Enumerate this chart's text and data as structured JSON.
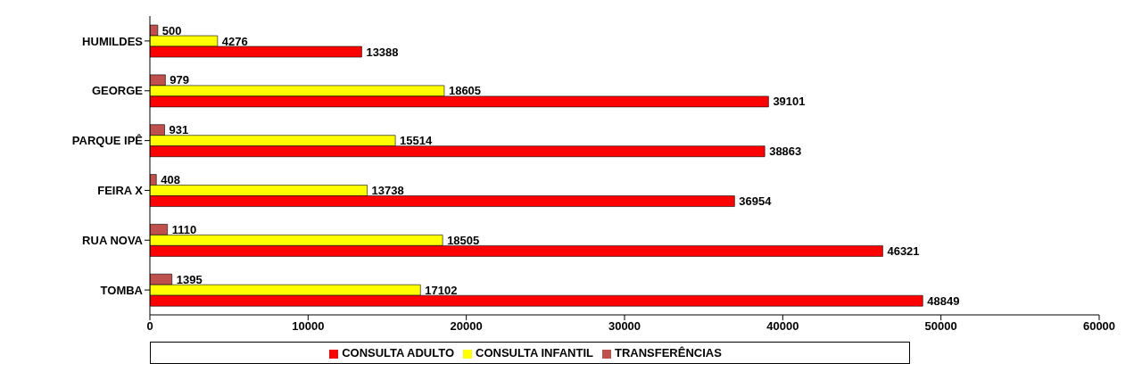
{
  "chart_data": {
    "type": "bar",
    "orientation": "horizontal",
    "categories": [
      "HUMILDES",
      "GEORGE",
      "PARQUE IPÊ",
      "FEIRA X",
      "RUA NOVA",
      "TOMBA"
    ],
    "series": [
      {
        "name": "TRANSFERÊNCIAS",
        "color": "#c0504d",
        "values": [
          500,
          979,
          931,
          408,
          1110,
          1395
        ]
      },
      {
        "name": "CONSULTA INFANTIL",
        "color": "#ffff00",
        "values": [
          4276,
          18605,
          15514,
          13738,
          18505,
          17102
        ]
      },
      {
        "name": "CONSULTA ADULTO",
        "color": "#ff0000",
        "values": [
          13388,
          39101,
          38863,
          36954,
          46321,
          48849
        ]
      }
    ],
    "xlim": [
      0,
      60000
    ],
    "xticks": [
      0,
      10000,
      20000,
      30000,
      40000,
      50000,
      60000
    ],
    "data_labels": true,
    "grid": false,
    "legend": "bottom"
  }
}
